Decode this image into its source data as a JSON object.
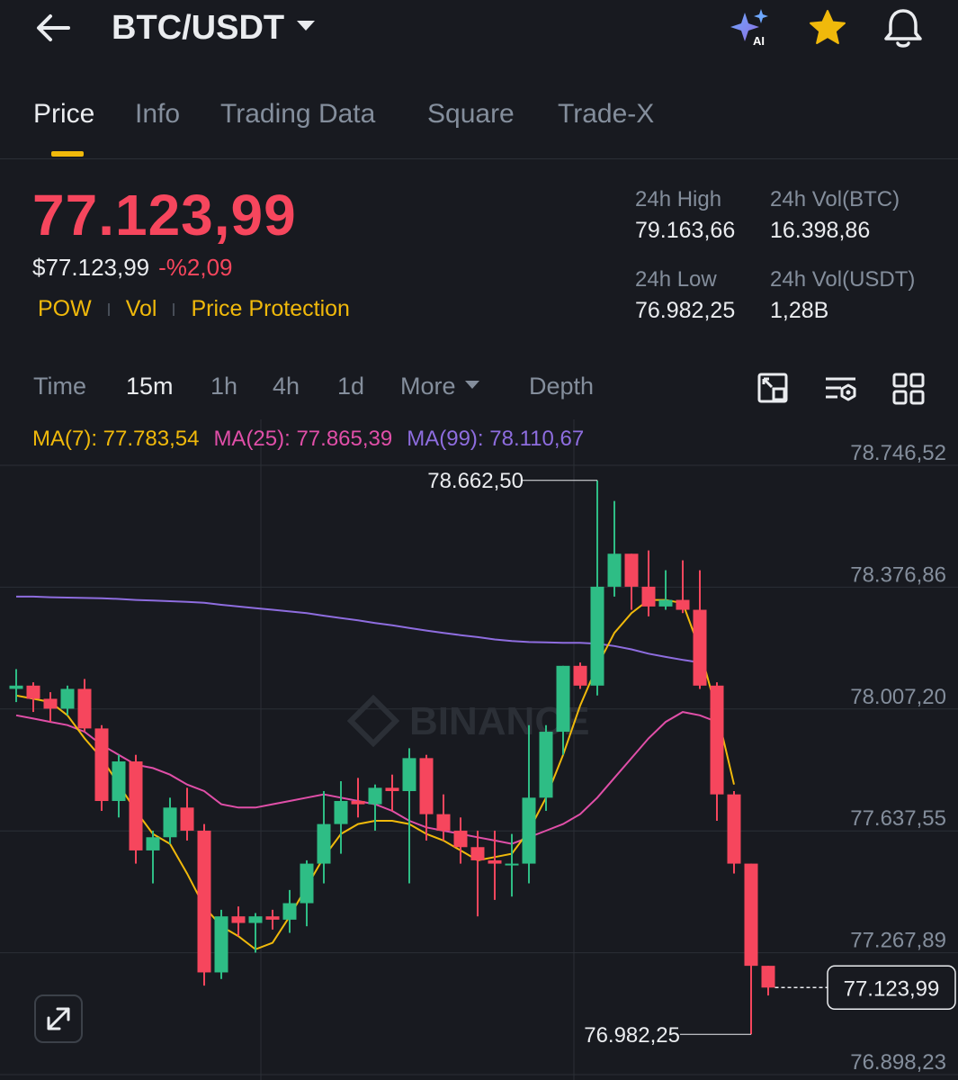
{
  "header": {
    "pair": "BTC/USDT",
    "icons": {
      "back": "back-arrow-icon",
      "pair_dropdown": "caret-down-icon",
      "ai": "ai-sparkle-icon",
      "favorite": "star-icon",
      "alerts": "bell-icon"
    },
    "ai_badge": "AI"
  },
  "tabs": [
    {
      "label": "Price",
      "active": true
    },
    {
      "label": "Info"
    },
    {
      "label": "Trading Data"
    },
    {
      "label": "Square"
    },
    {
      "label": "Trade-X"
    }
  ],
  "ticker": {
    "last_price": "77.123,99",
    "fiat_price": "$77.123,99",
    "change": "-%2,09",
    "tags": [
      "POW",
      "Vol",
      "Price Protection"
    ],
    "stats": {
      "high_label": "24h High",
      "high": "79.163,66",
      "low_label": "24h Low",
      "low": "76.982,25",
      "vol_btc_label": "24h Vol(BTC)",
      "vol_btc": "16.398,86",
      "vol_usdt_label": "24h Vol(USDT)",
      "vol_usdt": "1,28B"
    }
  },
  "intervals": {
    "items": [
      "Time",
      "15m",
      "1h",
      "4h",
      "1d",
      "More",
      "Depth"
    ],
    "active": "15m",
    "tools": [
      "chart-settings-icon",
      "indicator-settings-icon",
      "layout-grid-icon"
    ]
  },
  "colors": {
    "up": "#2ebd85",
    "down": "#f6465d",
    "accent": "#f0b90b",
    "ma7": "#f0b90b",
    "ma25": "#e04fa8",
    "ma99": "#8e6ddf",
    "bg": "#181a20"
  },
  "chart_data": {
    "type": "candlestick",
    "ma_legend": {
      "ma7": "MA(7): 77.783,54",
      "ma25": "MA(25): 77.865,39",
      "ma99": "MA(99): 78.110,67"
    },
    "y_axis_ticks": [
      "78.746,52",
      "78.376,86",
      "78.007,20",
      "77.637,55",
      "77.267,89",
      "76.898,23"
    ],
    "y_tick_values": [
      78746.52,
      78376.86,
      78007.2,
      77637.55,
      77267.89,
      76898.23
    ],
    "ylim": [
      76898.23,
      78746.52
    ],
    "high_marker": {
      "label": "78.662,50",
      "value": 78662.5
    },
    "low_marker": {
      "label": "76.982,25",
      "value": 76982.25
    },
    "current_price": {
      "label": "77.123,99",
      "value": 77123.99
    },
    "watermark": "BINANCE",
    "candles": [
      {
        "o": 78030,
        "h": 78090,
        "l": 77990,
        "c": 78040
      },
      {
        "o": 78040,
        "h": 78050,
        "l": 77960,
        "c": 78000
      },
      {
        "o": 78000,
        "h": 78020,
        "l": 77930,
        "c": 77970
      },
      {
        "o": 77970,
        "h": 78040,
        "l": 77950,
        "c": 78030
      },
      {
        "o": 78030,
        "h": 78060,
        "l": 77900,
        "c": 77910
      },
      {
        "o": 77910,
        "h": 77920,
        "l": 77660,
        "c": 77690
      },
      {
        "o": 77690,
        "h": 77830,
        "l": 77640,
        "c": 77810
      },
      {
        "o": 77810,
        "h": 77830,
        "l": 77500,
        "c": 77540
      },
      {
        "o": 77540,
        "h": 77600,
        "l": 77440,
        "c": 77580
      },
      {
        "o": 77580,
        "h": 77700,
        "l": 77560,
        "c": 77670
      },
      {
        "o": 77670,
        "h": 77730,
        "l": 77570,
        "c": 77600
      },
      {
        "o": 77600,
        "h": 77620,
        "l": 77130,
        "c": 77170
      },
      {
        "o": 77170,
        "h": 77360,
        "l": 77150,
        "c": 77340
      },
      {
        "o": 77340,
        "h": 77370,
        "l": 77280,
        "c": 77320
      },
      {
        "o": 77320,
        "h": 77350,
        "l": 77230,
        "c": 77340
      },
      {
        "o": 77340,
        "h": 77360,
        "l": 77300,
        "c": 77330
      },
      {
        "o": 77330,
        "h": 77420,
        "l": 77290,
        "c": 77380
      },
      {
        "o": 77380,
        "h": 77510,
        "l": 77310,
        "c": 77500
      },
      {
        "o": 77500,
        "h": 77720,
        "l": 77440,
        "c": 77620
      },
      {
        "o": 77620,
        "h": 77750,
        "l": 77530,
        "c": 77690
      },
      {
        "o": 77690,
        "h": 77760,
        "l": 77640,
        "c": 77680
      },
      {
        "o": 77680,
        "h": 77740,
        "l": 77600,
        "c": 77730
      },
      {
        "o": 77730,
        "h": 77770,
        "l": 77660,
        "c": 77720
      },
      {
        "o": 77720,
        "h": 77850,
        "l": 77440,
        "c": 77820
      },
      {
        "o": 77820,
        "h": 77830,
        "l": 77570,
        "c": 77650
      },
      {
        "o": 77650,
        "h": 77710,
        "l": 77570,
        "c": 77600
      },
      {
        "o": 77600,
        "h": 77640,
        "l": 77500,
        "c": 77550
      },
      {
        "o": 77550,
        "h": 77600,
        "l": 77340,
        "c": 77510
      },
      {
        "o": 77510,
        "h": 77600,
        "l": 77390,
        "c": 77500
      },
      {
        "o": 77500,
        "h": 77590,
        "l": 77400,
        "c": 77500
      },
      {
        "o": 77500,
        "h": 77920,
        "l": 77440,
        "c": 77700
      },
      {
        "o": 77700,
        "h": 77920,
        "l": 77660,
        "c": 77900
      },
      {
        "o": 77900,
        "h": 78100,
        "l": 77830,
        "c": 78100
      },
      {
        "o": 78100,
        "h": 78110,
        "l": 78030,
        "c": 78040
      },
      {
        "o": 78040,
        "h": 78662.5,
        "l": 78010,
        "c": 78340
      },
      {
        "o": 78340,
        "h": 78600,
        "l": 78310,
        "c": 78440
      },
      {
        "o": 78440,
        "h": 78440,
        "l": 78270,
        "c": 78340
      },
      {
        "o": 78340,
        "h": 78450,
        "l": 78250,
        "c": 78280
      },
      {
        "o": 78280,
        "h": 78390,
        "l": 78270,
        "c": 78300
      },
      {
        "o": 78300,
        "h": 78420,
        "l": 78260,
        "c": 78270
      },
      {
        "o": 78270,
        "h": 78390,
        "l": 78030,
        "c": 78040
      },
      {
        "o": 78040,
        "h": 78050,
        "l": 77630,
        "c": 77710
      },
      {
        "o": 77710,
        "h": 77720,
        "l": 77470,
        "c": 77500
      },
      {
        "o": 77500,
        "h": 77500,
        "l": 76982.25,
        "c": 77190
      },
      {
        "o": 77190,
        "h": 77190,
        "l": 77100,
        "c": 77123.99
      }
    ],
    "ma7": [
      78010,
      78000,
      77990,
      77950,
      77880,
      77820,
      77740,
      77660,
      77590,
      77560,
      77470,
      77370,
      77310,
      77280,
      77240,
      77260,
      77340,
      77430,
      77520,
      77590,
      77620,
      77630,
      77630,
      77620,
      77590,
      77570,
      77540,
      77510,
      77520,
      77530,
      77600,
      77700,
      77830,
      77980,
      78100,
      78200,
      78260,
      78300,
      78300,
      78290,
      78150,
      77960,
      77740
    ],
    "ma25": [
      77950,
      77940,
      77930,
      77920,
      77900,
      77860,
      77830,
      77800,
      77790,
      77770,
      77740,
      77720,
      77680,
      77670,
      77670,
      77680,
      77690,
      77700,
      77710,
      77700,
      77690,
      77680,
      77660,
      77630,
      77610,
      77600,
      77590,
      77580,
      77570,
      77560,
      77580,
      77600,
      77620,
      77650,
      77700,
      77760,
      77820,
      77880,
      77930,
      77960,
      77950,
      77930
    ],
    "ma99": [
      78310,
      78310,
      78308,
      78307,
      78306,
      78305,
      78303,
      78300,
      78298,
      78296,
      78294,
      78291,
      78285,
      78280,
      78275,
      78270,
      78265,
      78260,
      78252,
      78245,
      78238,
      78230,
      78223,
      78215,
      78207,
      78200,
      78193,
      78187,
      78180,
      78175,
      78172,
      78171,
      78170,
      78170,
      78167,
      78160,
      78150,
      78137,
      78127,
      78118,
      78110
    ]
  }
}
